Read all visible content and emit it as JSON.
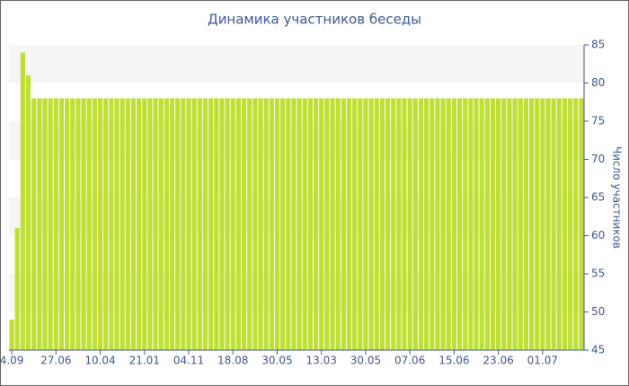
{
  "chart_data": {
    "type": "bar",
    "title": "Динамика участников беседы",
    "y_axis_label": "Число участников",
    "color": "#bde033",
    "ylim": [
      45,
      85
    ],
    "yticks": [
      45,
      50,
      55,
      60,
      65,
      70,
      75,
      80,
      85
    ],
    "grid": true,
    "categories": [
      "4.09",
      null,
      null,
      null,
      null,
      null,
      null,
      null,
      "27.06",
      null,
      null,
      null,
      null,
      null,
      null,
      null,
      "10.04",
      null,
      null,
      null,
      null,
      null,
      null,
      null,
      "21.01",
      null,
      null,
      null,
      null,
      null,
      null,
      null,
      "04.11",
      null,
      null,
      null,
      null,
      null,
      null,
      null,
      "18.08",
      null,
      null,
      null,
      null,
      null,
      null,
      null,
      "30.05",
      null,
      null,
      null,
      null,
      null,
      null,
      null,
      "13.03",
      null,
      null,
      null,
      null,
      null,
      null,
      null,
      "30.05",
      null,
      null,
      null,
      null,
      null,
      null,
      null,
      "07.06",
      null,
      null,
      null,
      null,
      null,
      null,
      null,
      "15.06",
      null,
      null,
      null,
      null,
      null,
      null,
      null,
      "23.06",
      null,
      null,
      null,
      null,
      null,
      null,
      null,
      "01.07",
      null,
      null,
      null,
      null,
      null,
      null,
      null
    ],
    "values": [
      49,
      61,
      84,
      81,
      78,
      78,
      78,
      78,
      78,
      78,
      78,
      78,
      78,
      78,
      78,
      78,
      78,
      78,
      78,
      78,
      78,
      78,
      78,
      78,
      78,
      78,
      78,
      78,
      78,
      78,
      78,
      78,
      78,
      78,
      78,
      78,
      78,
      78,
      78,
      78,
      78,
      78,
      78,
      78,
      78,
      78,
      78,
      78,
      78,
      78,
      78,
      78,
      78,
      78,
      78,
      78,
      78,
      78,
      78,
      78,
      78,
      78,
      78,
      78,
      78,
      78,
      78,
      78,
      78,
      78,
      78,
      78,
      78,
      78,
      78,
      78,
      78,
      78,
      78,
      78,
      78,
      78,
      78,
      78,
      78,
      78,
      78,
      78,
      78,
      78,
      78,
      78,
      78,
      78,
      78,
      78,
      78,
      78,
      78,
      78,
      78,
      78,
      78,
      78
    ]
  }
}
